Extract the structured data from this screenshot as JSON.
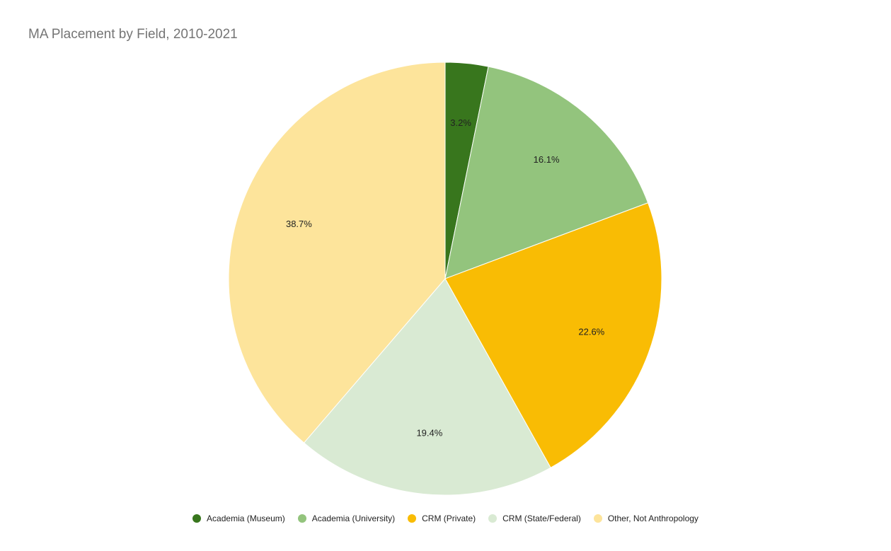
{
  "chart_data": {
    "type": "pie",
    "title": "MA Placement by Field, 2010-2021",
    "legend_position": "bottom",
    "slices": [
      {
        "label": "Academia (Museum)",
        "value": 3.2,
        "display": "3.2%",
        "color": "#38761d"
      },
      {
        "label": "Academia (University)",
        "value": 16.1,
        "display": "16.1%",
        "color": "#93c47d"
      },
      {
        "label": "CRM (Private)",
        "value": 22.6,
        "display": "22.6%",
        "color": "#f9bc04"
      },
      {
        "label": "CRM (State/Federal)",
        "value": 19.4,
        "display": "19.4%",
        "color": "#d9ead3"
      },
      {
        "label": "Other, Not Anthropology",
        "value": 38.7,
        "display": "38.7%",
        "color": "#fde49b"
      }
    ]
  }
}
